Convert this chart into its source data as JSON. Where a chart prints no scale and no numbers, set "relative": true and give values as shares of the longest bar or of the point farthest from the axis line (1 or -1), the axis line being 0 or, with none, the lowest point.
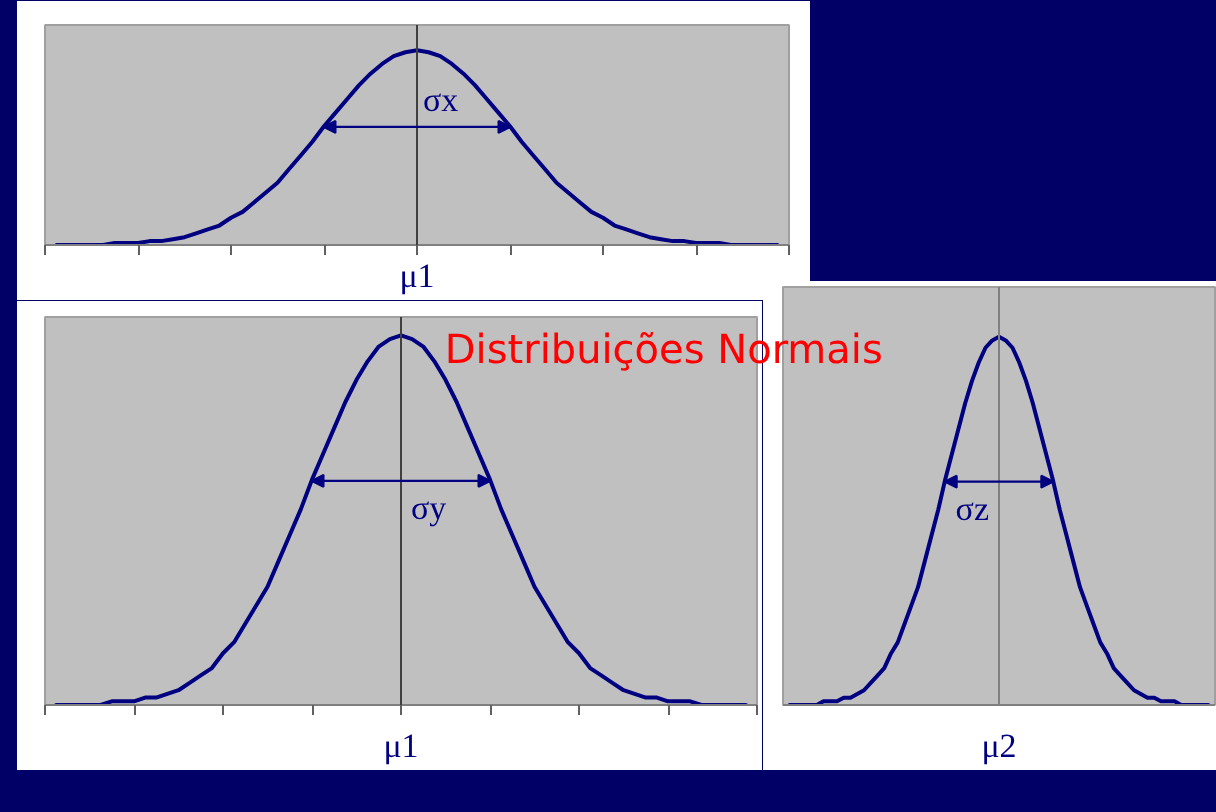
{
  "chart_data": [
    {
      "type": "line",
      "categories": [
        null,
        null,
        null,
        null,
        null,
        null,
        null,
        null,
        null,
        null,
        null,
        null,
        null,
        null,
        null,
        null,
        null,
        null,
        null,
        null,
        null,
        null,
        null,
        null,
        null,
        null,
        null,
        null,
        null,
        null,
        null,
        null,
        null,
        null,
        null,
        null,
        null,
        null,
        null,
        null,
        null,
        null,
        null,
        null,
        null,
        null,
        null,
        null,
        null,
        null,
        null,
        null,
        null,
        null,
        null,
        null,
        null,
        null,
        null,
        null,
        null,
        null,
        null,
        null,
        null
      ],
      "relative": true,
      "series": [
        {
          "color": "#000080",
          "values": [
            null,
            0,
            0,
            0,
            0,
            0,
            0.01,
            0.01,
            0.01,
            0.02,
            0.02,
            0.03,
            0.04,
            0.06,
            0.08,
            0.1,
            0.14,
            0.17,
            0.22,
            0.27,
            0.32,
            0.39,
            0.46,
            0.53,
            0.61,
            0.68,
            0.75,
            0.82,
            0.88,
            0.93,
            0.97,
            0.99,
            1,
            0.99,
            0.97,
            0.93,
            0.88,
            0.82,
            0.75,
            0.68,
            0.61,
            0.53,
            0.46,
            0.39,
            0.32,
            0.27,
            0.22,
            0.17,
            0.14,
            0.1,
            0.08,
            0.06,
            0.04,
            0.03,
            0.02,
            0.02,
            0.01,
            0.01,
            0.01,
            0,
            0,
            0,
            0,
            0,
            null
          ]
        }
      ],
      "ref_lines": [
        {
          "axis": "x",
          "label": "μ1",
          "color": "#404040"
        }
      ],
      "annotations": [
        "σx"
      ]
    },
    {
      "type": "line",
      "categories": [
        null,
        null,
        null,
        null,
        null,
        null,
        null,
        null,
        null,
        null,
        null,
        null,
        null,
        null,
        null,
        null,
        null,
        null,
        null,
        null,
        null,
        null,
        null,
        null,
        null,
        null,
        null,
        null,
        null,
        null,
        null,
        null,
        null,
        null,
        null,
        null,
        null,
        null,
        null,
        null,
        null,
        null,
        null,
        null,
        null,
        null,
        null,
        null,
        null,
        null,
        null,
        null,
        null,
        null,
        null,
        null,
        null,
        null,
        null,
        null,
        null,
        null,
        null,
        null,
        null
      ],
      "relative": true,
      "series": [
        {
          "color": "#000080",
          "values": [
            null,
            0,
            0,
            0,
            0,
            0,
            0.01,
            0.01,
            0.01,
            0.02,
            0.02,
            0.03,
            0.04,
            0.06,
            0.08,
            0.1,
            0.14,
            0.17,
            0.22,
            0.27,
            0.32,
            0.39,
            0.46,
            0.53,
            0.61,
            0.68,
            0.75,
            0.82,
            0.88,
            0.93,
            0.97,
            0.99,
            1,
            0.99,
            0.97,
            0.93,
            0.88,
            0.82,
            0.75,
            0.68,
            0.61,
            0.53,
            0.46,
            0.39,
            0.32,
            0.27,
            0.22,
            0.17,
            0.14,
            0.1,
            0.08,
            0.06,
            0.04,
            0.03,
            0.02,
            0.02,
            0.01,
            0.01,
            0.01,
            0,
            0,
            0,
            0,
            0,
            null
          ]
        }
      ],
      "ref_lines": [
        {
          "axis": "x",
          "label": "μ1",
          "color": "#404040"
        }
      ],
      "annotations": [
        "σy",
        "Distribuições Normais"
      ]
    },
    {
      "type": "line",
      "categories": [
        null,
        null,
        null,
        null,
        null,
        null,
        null,
        null,
        null,
        null,
        null,
        null,
        null,
        null,
        null,
        null,
        null,
        null,
        null,
        null,
        null,
        null,
        null,
        null,
        null,
        null,
        null,
        null,
        null,
        null,
        null,
        null,
        null,
        null,
        null,
        null,
        null,
        null,
        null,
        null,
        null,
        null,
        null,
        null,
        null,
        null,
        null,
        null,
        null,
        null,
        null,
        null,
        null,
        null,
        null,
        null,
        null,
        null,
        null,
        null,
        null,
        null,
        null,
        null,
        null
      ],
      "relative": true,
      "series": [
        {
          "color": "#000080",
          "values": [
            null,
            0,
            0,
            0,
            0,
            0,
            0.01,
            0.01,
            0.01,
            0.02,
            0.02,
            0.03,
            0.04,
            0.06,
            0.08,
            0.1,
            0.14,
            0.17,
            0.22,
            0.27,
            0.32,
            0.39,
            0.46,
            0.53,
            0.61,
            0.68,
            0.75,
            0.82,
            0.88,
            0.93,
            0.97,
            0.99,
            1,
            0.99,
            0.97,
            0.93,
            0.88,
            0.82,
            0.75,
            0.68,
            0.61,
            0.53,
            0.46,
            0.39,
            0.32,
            0.27,
            0.22,
            0.17,
            0.14,
            0.1,
            0.08,
            0.06,
            0.04,
            0.03,
            0.02,
            0.02,
            0.01,
            0.01,
            0.01,
            0,
            0,
            0,
            0,
            0,
            null
          ]
        }
      ],
      "ref_lines": [
        {
          "axis": "x",
          "label": "μ2",
          "color": "#808080"
        }
      ],
      "annotations": [
        "σz"
      ]
    }
  ]
}
